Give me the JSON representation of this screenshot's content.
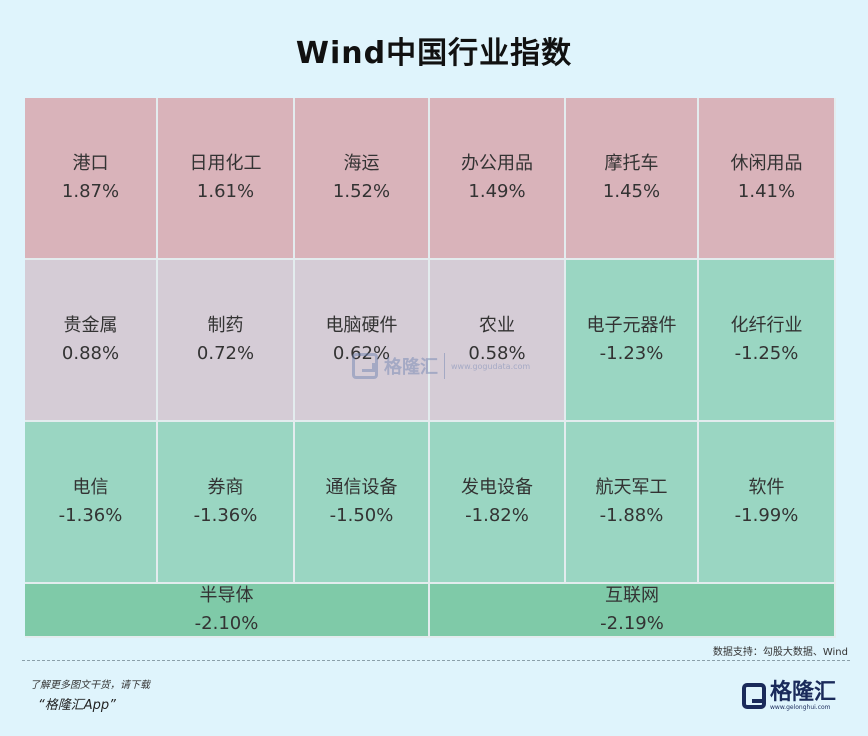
{
  "title": "Wind中国行业指数",
  "chart_data": {
    "type": "heatmap",
    "title": "Wind中国行业指数",
    "cells": [
      {
        "name": "港口",
        "value": "1.87%",
        "tone": "pos"
      },
      {
        "name": "日用化工",
        "value": "1.61%",
        "tone": "pos"
      },
      {
        "name": "海运",
        "value": "1.52%",
        "tone": "pos"
      },
      {
        "name": "办公用品",
        "value": "1.49%",
        "tone": "pos"
      },
      {
        "name": "摩托车",
        "value": "1.45%",
        "tone": "pos"
      },
      {
        "name": "休闲用品",
        "value": "1.41%",
        "tone": "pos"
      },
      {
        "name": "贵金属",
        "value": "0.88%",
        "tone": "neu"
      },
      {
        "name": "制药",
        "value": "0.72%",
        "tone": "neu"
      },
      {
        "name": "电脑硬件",
        "value": "0.62%",
        "tone": "neu"
      },
      {
        "name": "农业",
        "value": "0.58%",
        "tone": "neu"
      },
      {
        "name": "电子元器件",
        "value": "-1.23%",
        "tone": "neg"
      },
      {
        "name": "化纤行业",
        "value": "-1.25%",
        "tone": "neg"
      },
      {
        "name": "电信",
        "value": "-1.36%",
        "tone": "neg"
      },
      {
        "name": "券商",
        "value": "-1.36%",
        "tone": "neg"
      },
      {
        "name": "通信设备",
        "value": "-1.50%",
        "tone": "neg"
      },
      {
        "name": "发电设备",
        "value": "-1.82%",
        "tone": "neg"
      },
      {
        "name": "航天军工",
        "value": "-1.88%",
        "tone": "neg"
      },
      {
        "name": "软件",
        "value": "-1.99%",
        "tone": "neg"
      },
      {
        "name": "半导体",
        "value": "-2.10%",
        "tone": "deep"
      },
      {
        "name": "互联网",
        "value": "-2.19%",
        "tone": "deep"
      }
    ],
    "colors": {
      "pos": "#d9b3ba",
      "neu": "#d5ccd6",
      "neg": "#9ad6c2",
      "deep": "#7fcaa8"
    }
  },
  "watermark": {
    "name": "格隆汇",
    "url": "www.gogudata.com"
  },
  "source": "数据支持：勾股大数据、Wind",
  "footer": {
    "line1": "了解更多图文干货，请下载",
    "line2": "“格隆汇App”"
  },
  "logo": {
    "name": "格隆汇",
    "url": "www.gelonghui.com"
  }
}
